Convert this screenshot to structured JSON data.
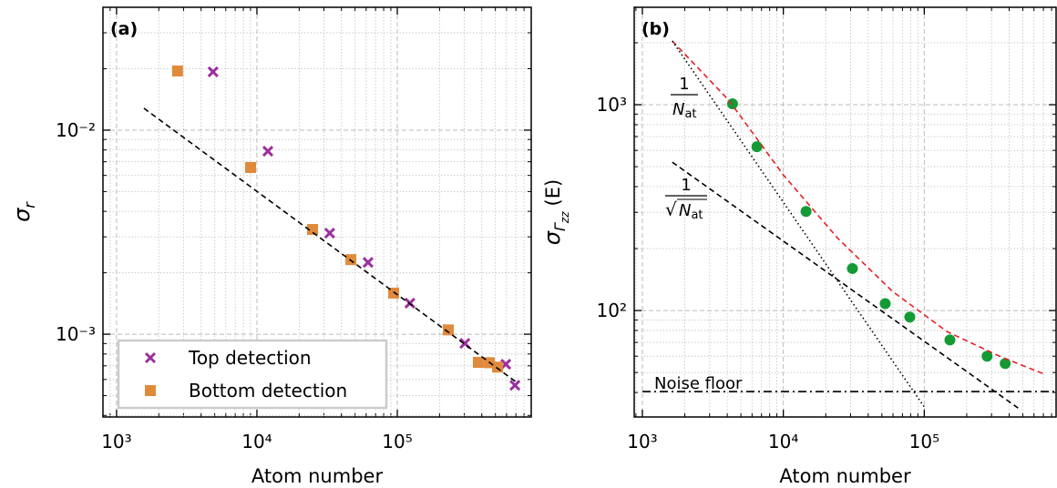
{
  "chart_data": [
    {
      "type": "scatter",
      "label": "(a)",
      "xlabel": "Atom number",
      "ylabel": "σ",
      "ylabel_sub": "r",
      "xscale": "log",
      "yscale": "log",
      "grid": true,
      "legend": "lower left",
      "xlim": [
        800,
        900000
      ],
      "ylim": [
        0.000393,
        0.04
      ],
      "xticks": [
        {
          "value": 1000,
          "label": "10³"
        },
        {
          "value": 10000,
          "label": "10⁴"
        },
        {
          "value": 100000,
          "label": "10⁵"
        }
      ],
      "yticks": [
        {
          "value": 0.001,
          "label": "10⁻³"
        },
        {
          "value": 0.01,
          "label": "10⁻²"
        }
      ],
      "xticks_minor": [
        800,
        900,
        2000,
        3000,
        4000,
        5000,
        6000,
        7000,
        8000,
        9000,
        20000,
        30000,
        40000,
        50000,
        60000,
        70000,
        80000,
        90000,
        200000,
        300000,
        400000,
        500000,
        600000,
        700000,
        800000
      ],
      "yticks_minor": [
        0.0004,
        0.0005,
        0.0006,
        0.0007,
        0.0008,
        0.0009,
        0.002,
        0.003,
        0.004,
        0.005,
        0.006,
        0.007,
        0.008,
        0.009,
        0.02,
        0.03,
        0.04
      ],
      "series": [
        {
          "name": "Top detection",
          "color": "#9b2f9e",
          "marker": "x",
          "x": [
            4870,
            11970,
            33000,
            61900,
            123000,
            303000,
            593000,
            689000
          ],
          "values": [
            0.0193,
            0.00789,
            0.00313,
            0.00225,
            0.00142,
            0.000902,
            0.000713,
            0.000562
          ]
        },
        {
          "name": "Bottom detection",
          "color": "#e08a3c",
          "marker": "square",
          "x": [
            2720,
            9010,
            24900,
            46700,
            94200,
            231000,
            378000,
            453000,
            518000
          ],
          "values": [
            0.0195,
            0.00656,
            0.00326,
            0.00232,
            0.00159,
            0.00105,
            0.000728,
            0.000725,
            0.00069
          ]
        },
        {
          "color": "#000000",
          "line": "dashed",
          "x": [
            1566,
            710000
          ],
          "values": [
            0.0128,
            0.00058
          ]
        }
      ]
    },
    {
      "type": "scatter",
      "label": "(b)",
      "xlabel": "Atom number",
      "ylabel": "σ",
      "ylabel_sub": "Γ",
      "ylabel_subsub": "zz",
      "ylabel_unit": "(E)",
      "xscale": "log",
      "yscale": "log",
      "grid": true,
      "xlim": [
        875,
        861000
      ],
      "ylim": [
        30.4,
        2974
      ],
      "xticks": [
        {
          "value": 1000,
          "label": "10³"
        },
        {
          "value": 10000,
          "label": "10⁴"
        },
        {
          "value": 100000,
          "label": "10⁵"
        }
      ],
      "yticks": [
        {
          "value": 100,
          "label": "10²"
        },
        {
          "value": 1000,
          "label": "10³"
        }
      ],
      "xticks_minor": [
        900,
        2000,
        3000,
        4000,
        5000,
        6000,
        7000,
        8000,
        9000,
        20000,
        30000,
        40000,
        50000,
        60000,
        70000,
        80000,
        90000,
        200000,
        300000,
        400000,
        500000,
        600000,
        700000,
        800000
      ],
      "yticks_minor": [
        40,
        50,
        60,
        70,
        80,
        90,
        200,
        300,
        400,
        500,
        600,
        700,
        800,
        900,
        2000
      ],
      "annotations": [
        {
          "numerator": "1",
          "denominator": "N",
          "sub": "at"
        },
        {
          "numerator": "1",
          "radical": "√",
          "denominator": "N",
          "sub": "at"
        },
        {
          "text": "Noise floor"
        }
      ],
      "series": [
        {
          "color": "#139a35",
          "marker": "circle",
          "x": [
            4360,
            6500,
            14500,
            30900,
            52800,
            78900,
            152000,
            279000,
            375000
          ],
          "values": [
            1010,
            625,
            303,
            160,
            108,
            93,
            72,
            60,
            55.3
          ]
        },
        {
          "color": "#e41e26",
          "line": "dashed",
          "x": [
            1630,
            4100,
            10000,
            24400,
            59400,
            145000,
            353000,
            690000
          ],
          "values": [
            2040,
            1052,
            456,
            224,
            124,
            79,
            59.4,
            49.5
          ]
        },
        {
          "color": "#000000",
          "line": "dotted",
          "x": [
            1630,
            100000
          ],
          "values": [
            2040,
            34
          ]
        },
        {
          "color": "#000000",
          "line": "dashed",
          "x": [
            1630,
            463000
          ],
          "values": [
            526,
            33.6
          ]
        },
        {
          "color": "#000000",
          "line": "dashdot",
          "x": [
            1000,
            861000
          ],
          "values": [
            40.4,
            40.4
          ]
        }
      ]
    }
  ]
}
